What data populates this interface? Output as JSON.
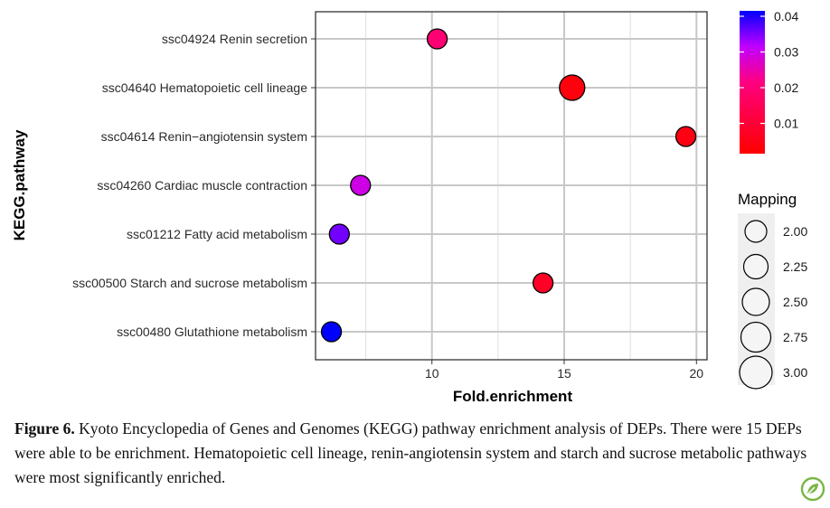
{
  "chart_data": {
    "type": "scatter",
    "xlabel": "Fold.enrichment",
    "ylabel": "KEGG.pathway",
    "xlim": [
      5.6,
      20.4
    ],
    "xticks": [
      10,
      15,
      20
    ],
    "grid": true,
    "categories": [
      "ssc04924 Renin secretion",
      "ssc04640 Hematopoietic cell lineage",
      "ssc04614 Renin−angiotensin system",
      "ssc04260 Cardiac muscle contraction",
      "ssc01212 Fatty acid metabolism",
      "ssc00500 Starch and sucrose metabolism",
      "ssc00480 Glutathione metabolism"
    ],
    "points": [
      {
        "pathway": "ssc04924 Renin secretion",
        "fold_enrichment": 10.2,
        "mapping": 2.5,
        "pvalue": 0.018
      },
      {
        "pathway": "ssc04640 Hematopoietic cell lineage",
        "fold_enrichment": 15.3,
        "mapping": 3.0,
        "pvalue": 0.002
      },
      {
        "pathway": "ssc04614 Renin−angiotensin system",
        "fold_enrichment": 19.6,
        "mapping": 2.5,
        "pvalue": 0.003
      },
      {
        "pathway": "ssc04260 Cardiac muscle contraction",
        "fold_enrichment": 7.3,
        "mapping": 2.5,
        "pvalue": 0.028
      },
      {
        "pathway": "ssc01212 Fatty acid metabolism",
        "fold_enrichment": 6.5,
        "mapping": 2.5,
        "pvalue": 0.034
      },
      {
        "pathway": "ssc00500 Starch and sucrose metabolism",
        "fold_enrichment": 14.2,
        "mapping": 2.5,
        "pvalue": 0.006
      },
      {
        "pathway": "ssc00480 Glutathione metabolism",
        "fold_enrichment": 6.2,
        "mapping": 2.5,
        "pvalue": 0.04
      }
    ],
    "color_legend": {
      "ticks": [
        "0.04",
        "0.03",
        "0.02",
        "0.01"
      ],
      "tick_values": [
        0.04,
        0.03,
        0.02,
        0.01
      ],
      "range": [
        0.0,
        0.04
      ],
      "low_color": "#ff0000",
      "high_color": "#0000ff"
    },
    "size_legend": {
      "title": "Mapping",
      "values": [
        "2.00",
        "2.25",
        "2.50",
        "2.75",
        "3.00"
      ]
    }
  },
  "caption": {
    "label": "Figure 6.",
    "text": " Kyoto Encyclopedia of Genes and Genomes (KEGG) pathway enrichment analysis of DEPs. There were 15 DEPs were able to be enrichment. Hematopoietic cell lineage, renin-angiotensin system and starch and sucrose metabolic pathways were most significantly enriched."
  },
  "logo": {
    "icon": "journal-leaf-logo-icon",
    "color": "#7ab648"
  }
}
